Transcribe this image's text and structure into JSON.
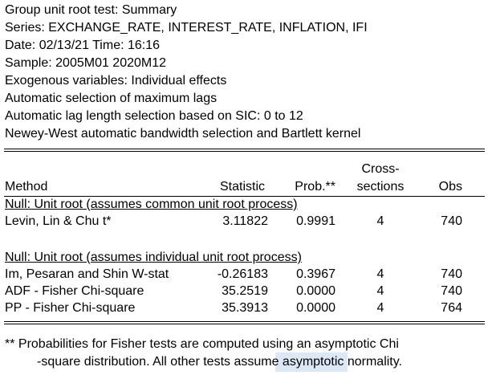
{
  "header": {
    "lines": [
      "Group unit root test: Summary",
      "Series: EXCHANGE_RATE, INTEREST_RATE, INFLATION, IFI",
      "Date: 02/13/21   Time: 16:16",
      "Sample: 2005M01 2020M12",
      "Exogenous variables: Individual effects",
      "Automatic selection of maximum lags",
      "Automatic lag length selection based on SIC: 0 to 12",
      "Newey-West automatic bandwidth selection and Bartlett kernel"
    ]
  },
  "table": {
    "columns": {
      "method": "Method",
      "statistic": "Statistic",
      "prob": "Prob.**",
      "cross_sections_line1": "Cross-",
      "cross_sections_line2": "sections",
      "obs": "Obs"
    },
    "group1": {
      "title": "Null: Unit root (assumes common unit root process)",
      "rows": [
        {
          "method": "Levin, Lin & Chu t*",
          "statistic": "3.11822",
          "prob": "0.9991",
          "cross": "4",
          "obs": "740"
        }
      ]
    },
    "group2": {
      "title": "Null: Unit root (assumes individual unit root process)",
      "rows": [
        {
          "method": "Im, Pesaran and Shin W-stat",
          "statistic": "-0.26183",
          "prob": "0.3967",
          "cross": "4",
          "obs": "740"
        },
        {
          "method": "ADF - Fisher Chi-square",
          "statistic": "35.2519",
          "prob": "0.0000",
          "cross": "4",
          "obs": "740"
        },
        {
          "method": "PP - Fisher Chi-square",
          "statistic": "35.3913",
          "prob": "0.0000",
          "cross": "4",
          "obs": "764"
        }
      ]
    }
  },
  "footnote": {
    "line1": "** Probabilities for Fisher tests are computed using an asymptotic Chi",
    "line2": "-square distribution. All other tests assume asymptotic normality."
  }
}
